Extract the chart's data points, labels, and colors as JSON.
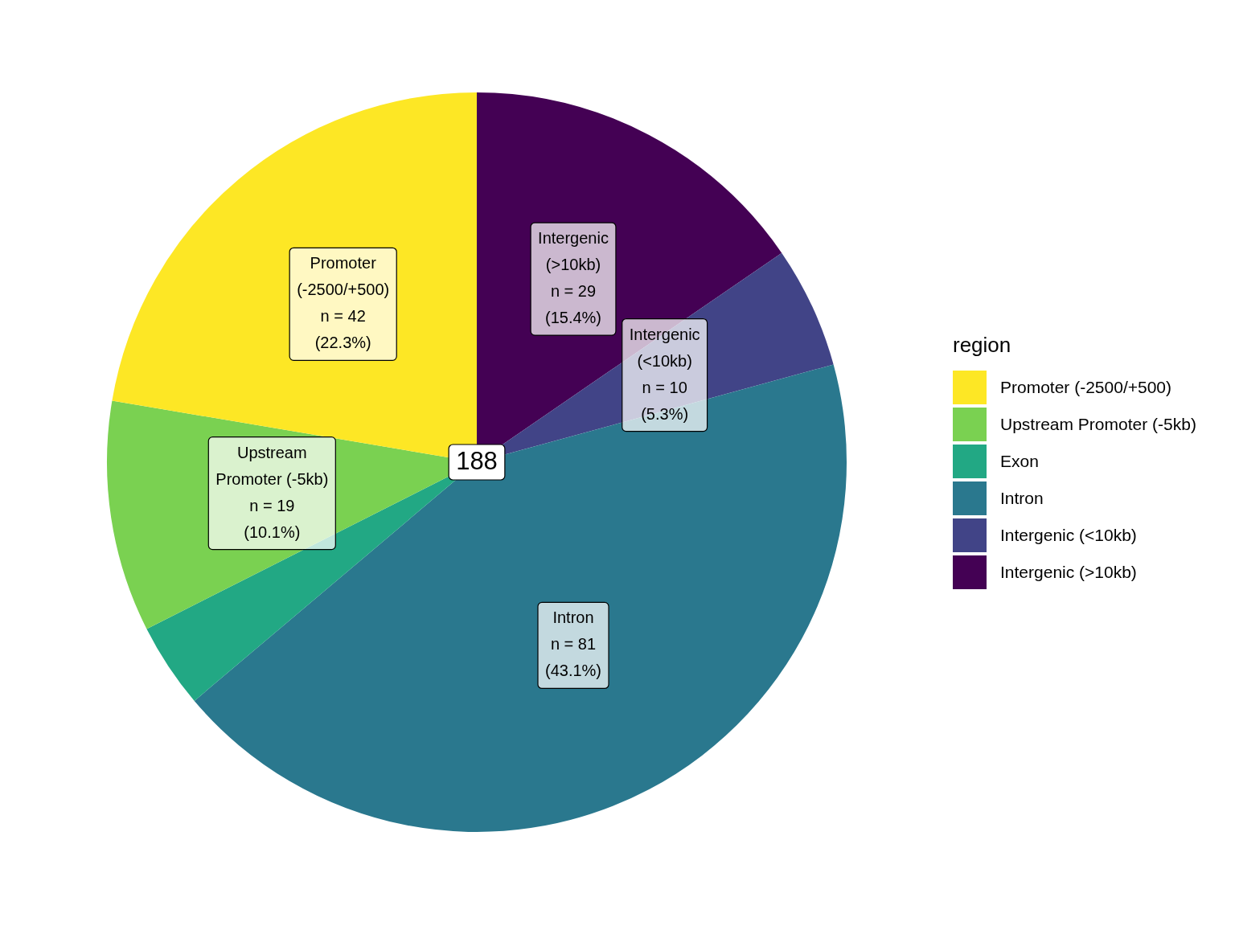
{
  "chart_data": {
    "type": "pie",
    "legend_title": "region",
    "legend": "right",
    "categories": [
      "Promoter (-2500/+500)",
      "Upstream Promoter (-5kb)",
      "Exon",
      "Intron",
      "Intergenic (<10kb)",
      "Intergenic (>10kb)"
    ],
    "values": [
      42,
      19,
      7,
      81,
      10,
      29
    ],
    "colors": [
      "#fde725",
      "#7ad151",
      "#22a884",
      "#2a788e",
      "#414487",
      "#440154"
    ],
    "value_labels": [
      "Promoter\n(-2500/+500)\nn = 42\n(22.3%)",
      "Upstream\nPromoter (-5kb)\nn = 19\n(10.1%)",
      null,
      "Intron\nn = 81\n(43.1%)",
      "Intergenic\n(<10kb)\nn = 10\n(5.3%)",
      "Intergenic\n(>10kb)\nn = 29\n(15.4%)"
    ],
    "annotations": [
      "188"
    ]
  }
}
